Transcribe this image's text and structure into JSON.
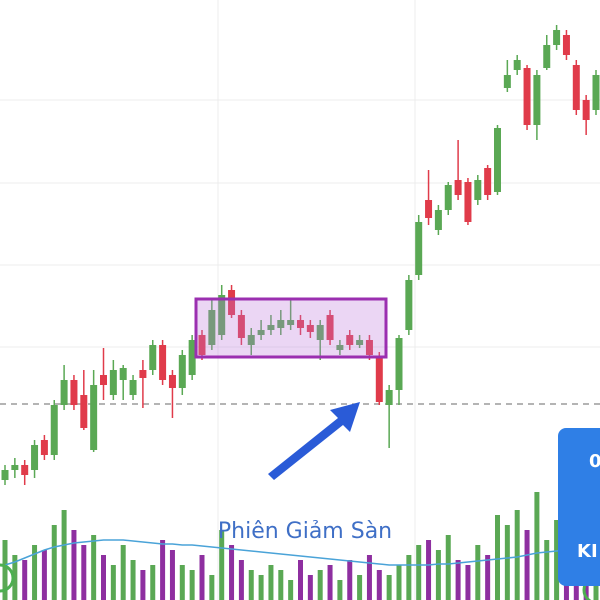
{
  "chart_data": {
    "type": "candlestick",
    "ylim": [
      0,
      600
    ],
    "open": [
      120,
      130,
      135,
      130,
      160,
      145,
      195,
      220,
      205,
      150,
      225,
      205,
      220,
      205,
      230,
      230,
      255,
      225,
      212,
      225,
      265,
      255,
      265,
      310,
      285,
      255,
      265,
      270,
      272,
      275,
      280,
      275,
      260,
      285,
      250,
      265,
      255,
      260,
      242,
      195,
      210,
      270,
      325,
      400,
      370,
      390,
      420,
      418,
      400,
      432,
      408,
      512,
      530,
      532,
      475,
      532,
      555,
      565,
      535,
      500,
      490
    ],
    "high": [
      135,
      142,
      140,
      160,
      165,
      200,
      235,
      225,
      230,
      230,
      252,
      240,
      235,
      225,
      240,
      260,
      260,
      230,
      250,
      265,
      270,
      300,
      315,
      315,
      290,
      272,
      280,
      285,
      290,
      302,
      285,
      280,
      280,
      290,
      260,
      270,
      265,
      265,
      248,
      215,
      265,
      325,
      385,
      430,
      395,
      418,
      460,
      422,
      425,
      435,
      475,
      540,
      545,
      535,
      530,
      565,
      575,
      570,
      540,
      505,
      530
    ],
    "low": [
      115,
      122,
      115,
      122,
      140,
      140,
      190,
      190,
      170,
      148,
      200,
      200,
      200,
      200,
      192,
      225,
      215,
      182,
      205,
      220,
      240,
      250,
      260,
      282,
      255,
      245,
      260,
      265,
      265,
      270,
      265,
      262,
      240,
      255,
      245,
      250,
      252,
      240,
      195,
      152,
      195,
      265,
      320,
      375,
      365,
      385,
      400,
      375,
      395,
      400,
      405,
      508,
      525,
      470,
      460,
      530,
      550,
      540,
      485,
      465,
      485
    ],
    "close": [
      130,
      135,
      125,
      155,
      145,
      195,
      220,
      195,
      172,
      215,
      215,
      230,
      232,
      220,
      222,
      255,
      220,
      212,
      245,
      260,
      245,
      290,
      305,
      285,
      262,
      265,
      270,
      275,
      280,
      280,
      272,
      268,
      275,
      260,
      255,
      255,
      260,
      245,
      198,
      210,
      262,
      320,
      378,
      382,
      390,
      415,
      405,
      378,
      420,
      405,
      472,
      525,
      540,
      475,
      525,
      555,
      570,
      545,
      490,
      480,
      525
    ],
    "up_color": "#5aa854",
    "down_color": "#e03b4a",
    "volume_down_color": "#8e2fa0",
    "volume": [
      60,
      45,
      40,
      55,
      50,
      75,
      90,
      70,
      55,
      65,
      45,
      35,
      55,
      40,
      30,
      35,
      60,
      50,
      35,
      30,
      45,
      25,
      70,
      55,
      40,
      30,
      25,
      35,
      30,
      20,
      40,
      25,
      30,
      35,
      20,
      40,
      25,
      45,
      30,
      25,
      35,
      45,
      55,
      60,
      50,
      65,
      40,
      35,
      55,
      45,
      85,
      75,
      90,
      70,
      108,
      60,
      80,
      40,
      50,
      55,
      30
    ],
    "volume_ma": [
      35,
      38,
      42,
      46,
      50,
      53,
      55,
      57,
      58,
      59,
      60,
      60,
      60,
      59,
      58,
      57,
      56,
      56,
      55,
      55,
      54,
      53,
      52,
      51,
      50,
      49,
      48,
      47,
      46,
      45,
      44,
      43,
      42,
      41,
      40,
      39,
      38,
      37,
      36,
      35,
      35,
      35,
      35,
      35,
      36,
      36,
      37,
      38,
      39,
      40,
      41,
      42,
      43,
      45,
      47,
      48,
      49,
      50,
      51,
      52,
      52
    ],
    "ma_color": "#4aa3d8",
    "annotation": "Phiên Giảm Sàn"
  },
  "button": {
    "top_text": "0",
    "bottom_text": "KI"
  }
}
